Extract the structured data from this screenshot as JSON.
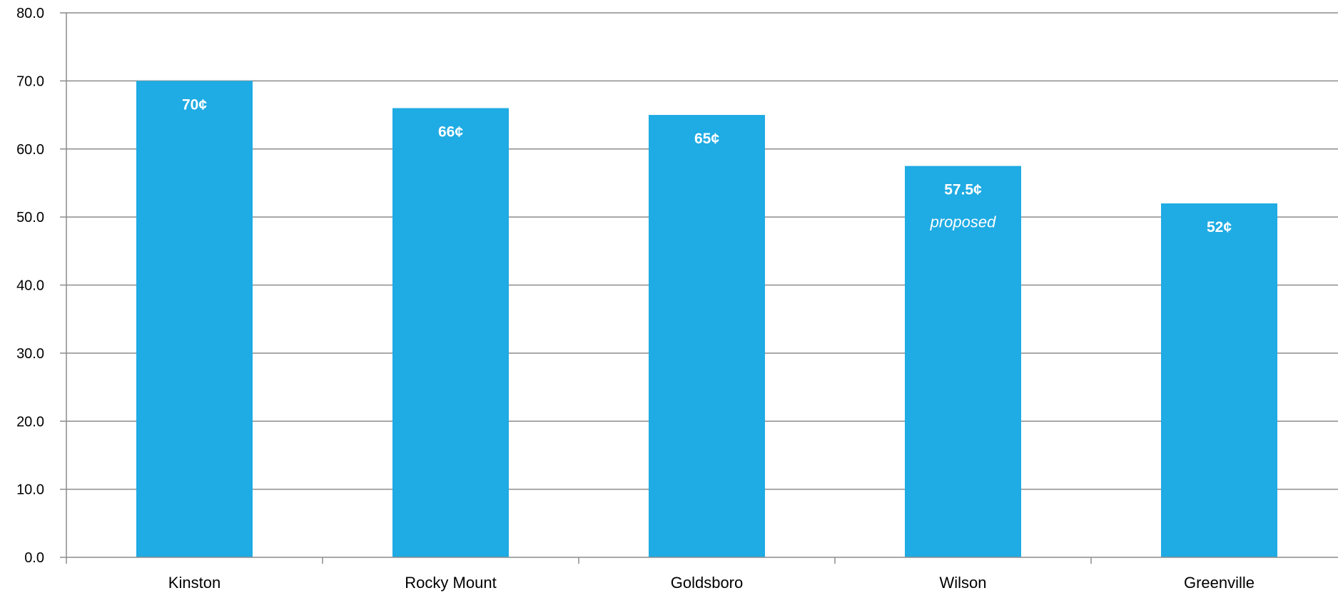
{
  "chart_data": {
    "type": "bar",
    "categories": [
      "Kinston",
      "Rocky Mount",
      "Goldsboro",
      "Wilson",
      "Greenville"
    ],
    "values": [
      70,
      66,
      65,
      57.5,
      52
    ],
    "data_labels": [
      "70¢",
      "66¢",
      "65¢",
      "57.5¢",
      "52¢"
    ],
    "annotations": [
      {
        "category": "Wilson",
        "text": "proposed"
      }
    ],
    "ylim": [
      0,
      80
    ],
    "y_ticks": [
      "0.0",
      "10.0",
      "20.0",
      "30.0",
      "40.0",
      "50.0",
      "60.0",
      "70.0",
      "80.0"
    ],
    "y_tick_values": [
      0,
      10,
      20,
      30,
      40,
      50,
      60,
      70,
      80
    ],
    "grid": true,
    "legend": "none",
    "colors": {
      "bar": "#1fabe3",
      "grid": "#8c8c8c",
      "axis": "#8c8c8c"
    }
  }
}
